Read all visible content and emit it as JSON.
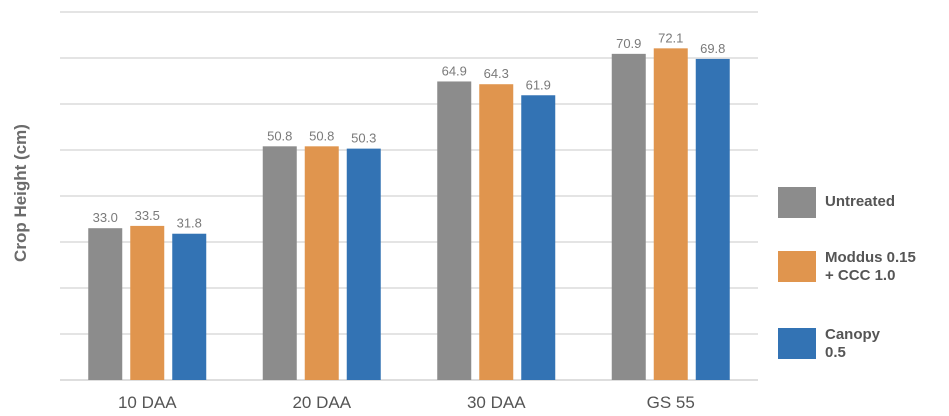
{
  "chart_data": {
    "type": "bar",
    "title": "",
    "xlabel": "",
    "ylabel": "Crop Height (cm)",
    "ylim": [
      0,
      80
    ],
    "grid": true,
    "legend_position": "right",
    "categories": [
      "10 DAA",
      "20 DAA",
      "30 DAA",
      "GS 55"
    ],
    "series": [
      {
        "name": "Untreated",
        "color": "#8c8c8c",
        "values": [
          33.0,
          50.8,
          64.9,
          70.9
        ]
      },
      {
        "name": "Moddus 0.15\n+ CCC 1.0",
        "color": "#e0954e",
        "values": [
          33.5,
          50.8,
          64.3,
          72.1
        ]
      },
      {
        "name": "Canopy\n0.5",
        "color": "#3373b4",
        "values": [
          31.8,
          50.3,
          61.9,
          69.8
        ]
      }
    ],
    "value_labels": [
      [
        "33.0",
        "50.8",
        "64.9",
        "70.9"
      ],
      [
        "33.5",
        "50.8",
        "64.3",
        "72.1"
      ],
      [
        "31.8",
        "50.3",
        "61.9",
        "69.8"
      ]
    ]
  }
}
